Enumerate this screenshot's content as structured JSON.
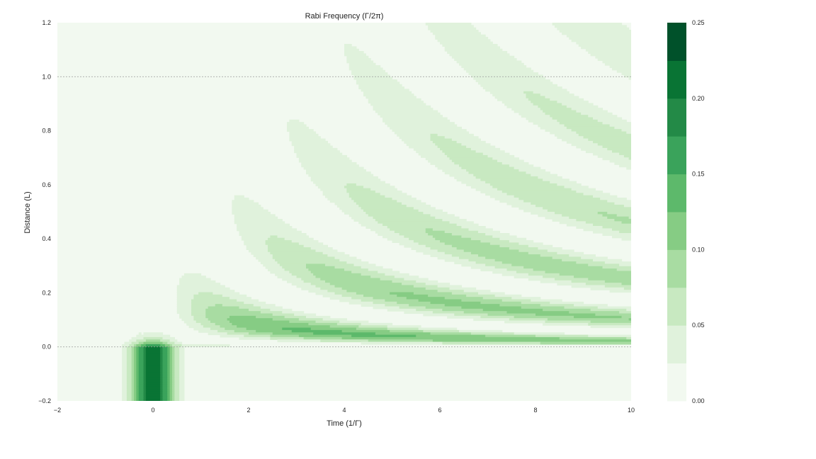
{
  "chart_data": {
    "type": "heatmap",
    "subtype": "filled-contour",
    "title": "Rabi Frequency (Γ/2π)",
    "xlabel": "Time (1/Γ)",
    "ylabel": "Distance (L)",
    "xlim": [
      -2,
      10
    ],
    "ylim": [
      -0.2,
      1.2
    ],
    "xticks": [
      "−2",
      "0",
      "2",
      "4",
      "6",
      "8",
      "10"
    ],
    "yticks": [
      "−0.2",
      "0.0",
      "0.2",
      "0.4",
      "0.6",
      "0.8",
      "1.0",
      "1.2"
    ],
    "reference_lines_y": [
      0.0,
      1.0
    ],
    "grid": false,
    "colormap": "Greens",
    "colorbar": {
      "levels": [
        0.0,
        0.025,
        0.05,
        0.075,
        0.1,
        0.125,
        0.15,
        0.175,
        0.2,
        0.225,
        0.25
      ],
      "ticks": [
        "0.00",
        "0.05",
        "0.10",
        "0.15",
        "0.20",
        "0.25"
      ],
      "colors": [
        "#f2f9f0",
        "#e0f2dc",
        "#c8e9c1",
        "#a8dca2",
        "#86cc84",
        "#5db96b",
        "#3aa35b",
        "#238a47",
        "#097434",
        "#00512a"
      ]
    },
    "pulse_center_time": 0.0,
    "peak_value": 0.22
  }
}
